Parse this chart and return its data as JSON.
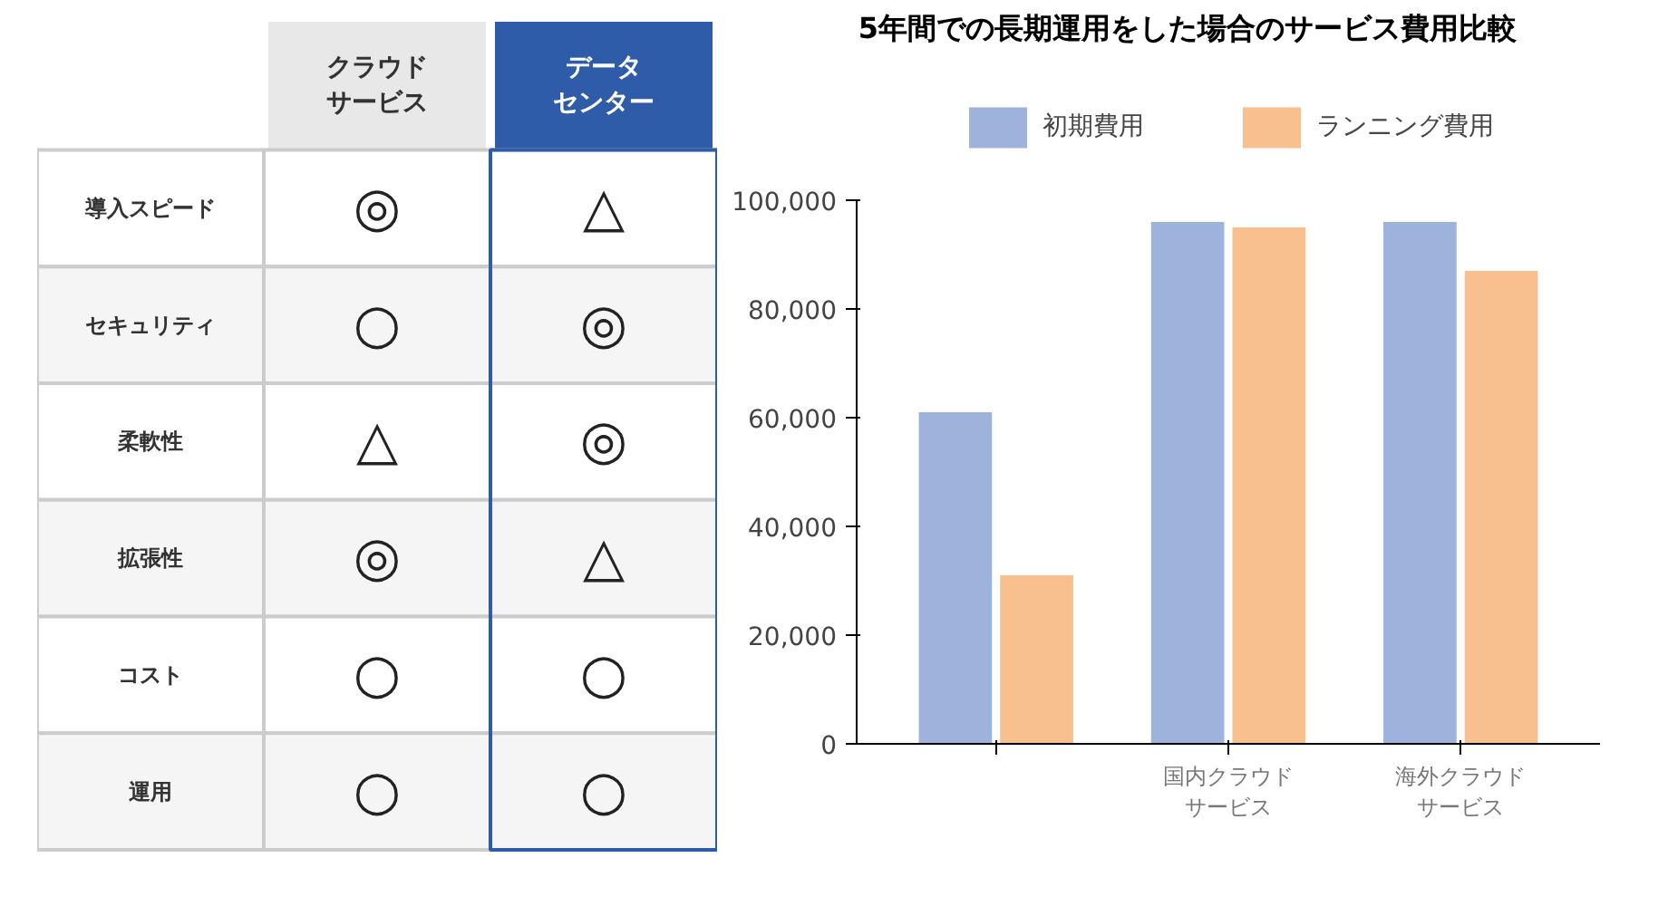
{
  "chart_data": [
    {
      "type": "other",
      "categories": [
        "クラウドサービス",
        "データセンター"
      ],
      "colors": [
        "#e8e8e8",
        "#2e5ca8"
      ],
      "y_categories": [
        "導入スピード",
        "セキュリティ",
        "柔軟性",
        "拡張性",
        "コスト",
        "運用"
      ],
      "cell_labels": [
        [
          "◎",
          "△"
        ],
        [
          "○",
          "◎"
        ],
        [
          "△",
          "◎"
        ],
        [
          "◎",
          "△"
        ],
        [
          "○",
          "○"
        ],
        [
          "○",
          "○"
        ]
      ]
    },
    {
      "type": "bar",
      "title": "5年間での長期運用をした場合のサービス費用比較",
      "categories": [
        null,
        "国内クラウドサービス",
        "海外クラウドサービス"
      ],
      "series": [
        {
          "name": "初期費用",
          "color": "#9db3dc",
          "values": [
            61000,
            96000,
            96000
          ]
        },
        {
          "name": "ランニング費用",
          "color": "#f8c08e",
          "values": [
            31000,
            95000,
            87000
          ]
        }
      ],
      "ylim": [
        0,
        100000
      ],
      "yticks": [
        0,
        {
          "value": 20000,
          "label": "20,000"
        },
        {
          "value": 40000,
          "label": "40,000"
        },
        {
          "value": 60000,
          "label": "60,000"
        },
        {
          "value": 80000,
          "label": "80,000"
        },
        {
          "value": 100000,
          "label": "100,000"
        }
      ],
      "grid": false,
      "legend": "top"
    }
  ]
}
